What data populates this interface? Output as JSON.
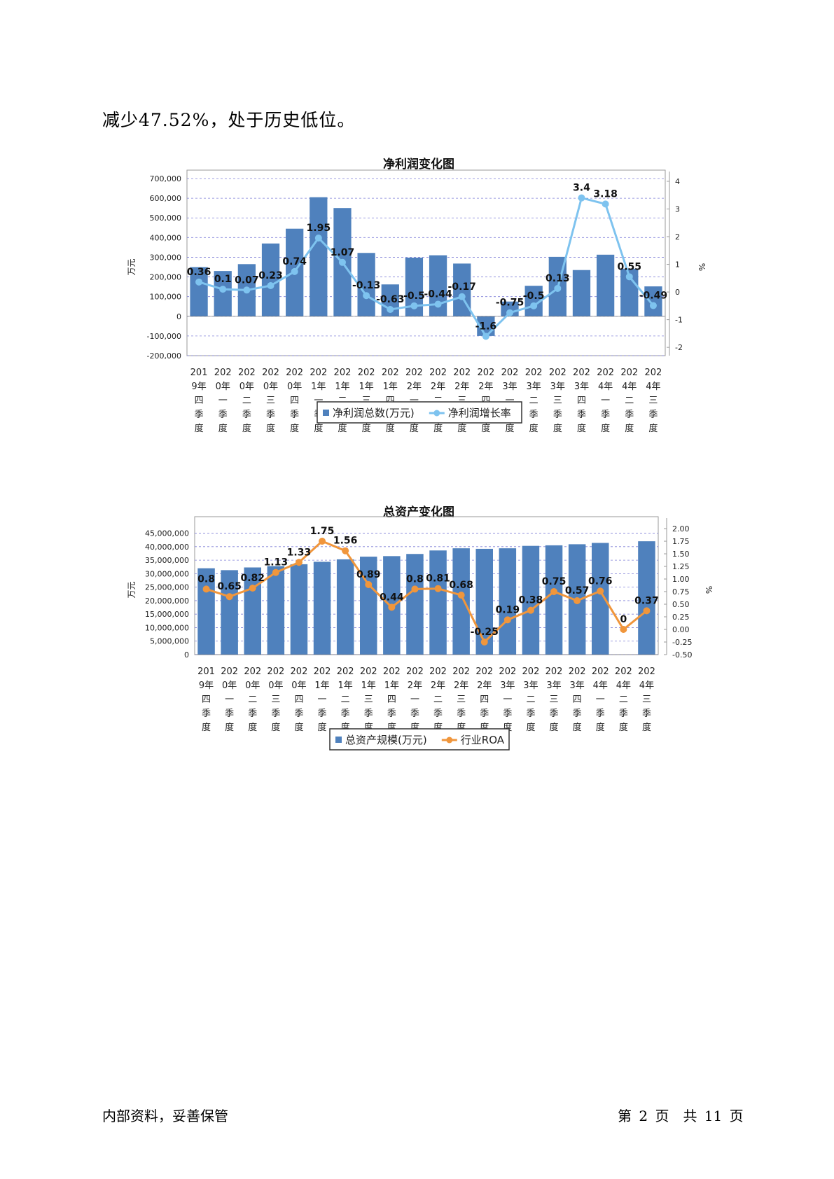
{
  "page": {
    "intro_text": "减少47.52%，处于历史低位。",
    "footer_left": "内部资料，妥善保管",
    "footer_right": "第 2 页　共 11 页"
  },
  "chart_data": [
    {
      "type": "bar",
      "title": "净利润变化图",
      "categories": [
        "2019年四季度",
        "2020年一季度",
        "2020年二季度",
        "2020年三季度",
        "2020年四季度",
        "2021年一季度",
        "2021年二季度",
        "2021年三季度",
        "2021年四季度",
        "2022年一季度",
        "2022年二季度",
        "2022年三季度",
        "2022年四季度",
        "2023年一季度",
        "2023年二季度",
        "2023年三季度",
        "2023年四季度",
        "2024年一季度",
        "2024年二季度",
        "2024年三季度"
      ],
      "ylabel": "万元",
      "y2label": "%",
      "ylim": [
        -200000,
        700000
      ],
      "y2lim": [
        -2.3,
        4.1
      ],
      "yticks": [
        "700,000",
        "600,000",
        "500,000",
        "400,000",
        "300,000",
        "200,000",
        "100,000",
        "0",
        "-100,000",
        "-200,000"
      ],
      "y2ticks": [
        "4",
        "3",
        "2",
        "1",
        "0",
        "-1",
        "-2"
      ],
      "legend": "bottom",
      "grid": true,
      "series": [
        {
          "name": "净利润总数(万元)",
          "kind": "bar",
          "axis": "left",
          "color": "#4f81bd",
          "values": [
            250000,
            230000,
            265000,
            370000,
            445000,
            605000,
            550000,
            322000,
            162000,
            298000,
            310000,
            268000,
            -100000,
            75000,
            155000,
            302000,
            235000,
            313000,
            242000,
            152000
          ]
        },
        {
          "name": "净利润增长率",
          "kind": "line",
          "axis": "right",
          "color": "#7ec3ef",
          "values": [
            0.36,
            0.1,
            0.07,
            0.23,
            0.74,
            1.95,
            1.07,
            -0.13,
            -0.63,
            -0.5,
            -0.44,
            -0.17,
            -1.6,
            -0.75,
            -0.5,
            0.13,
            3.4,
            3.18,
            0.55,
            -0.49
          ],
          "labels": [
            "0.36",
            "0.1",
            "0.07",
            "0.23",
            "0.74",
            "1.95",
            "1.07",
            "-0.13",
            "-0.63",
            "-0.5",
            "-0.44",
            "-0.17",
            "-1.6",
            "-0.75",
            "-0.5",
            "0.13",
            "3.4",
            "3.18",
            "0.55",
            "-0.49"
          ]
        }
      ]
    },
    {
      "type": "bar",
      "title": "总资产变化图",
      "categories": [
        "2019年四季度",
        "2020年一季度",
        "2020年二季度",
        "2020年三季度",
        "2020年四季度",
        "2021年一季度",
        "2021年二季度",
        "2021年三季度",
        "2021年四季度",
        "2022年一季度",
        "2022年二季度",
        "2022年三季度",
        "2022年四季度",
        "2023年一季度",
        "2023年二季度",
        "2023年三季度",
        "2023年四季度",
        "2024年一季度",
        "2024年二季度",
        "2024年三季度"
      ],
      "ylabel": "万元",
      "y2label": "%",
      "ylim": [
        0,
        48000000
      ],
      "y2lim": [
        -0.5,
        2.07
      ],
      "yticks": [
        "45,000,000",
        "40,000,000",
        "35,000,000",
        "30,000,000",
        "25,000,000",
        "20,000,000",
        "15,000,000",
        "10,000,000",
        "5,000,000",
        "0"
      ],
      "y2ticks": [
        "2.00",
        "1.75",
        "1.50",
        "1.25",
        "1.00",
        "0.75",
        "0.50",
        "0.25",
        "0.00",
        "-0.25",
        "-0.50"
      ],
      "legend": "bottom",
      "grid": true,
      "series": [
        {
          "name": "总资产规模(万元)",
          "kind": "bar",
          "axis": "left",
          "color": "#4f81bd",
          "values": [
            32000000,
            31300000,
            32300000,
            32800000,
            33500000,
            34400000,
            35300000,
            36300000,
            36500000,
            37300000,
            38600000,
            39400000,
            39200000,
            39400000,
            40300000,
            40500000,
            40900000,
            41400000,
            null,
            42000000
          ]
        },
        {
          "name": "行业ROA",
          "kind": "line",
          "axis": "right",
          "color": "#f0963c",
          "values": [
            0.8,
            0.65,
            0.82,
            1.13,
            1.33,
            1.75,
            1.56,
            0.89,
            0.44,
            0.8,
            0.81,
            0.68,
            -0.25,
            0.19,
            0.38,
            0.75,
            0.57,
            0.76,
            0,
            0.37
          ],
          "labels": [
            "0.8",
            "0.65",
            "0.82",
            "1.13",
            "1.33",
            "1.75",
            "1.56",
            "0.89",
            "0.44",
            "0.8",
            "0.81",
            "0.68",
            "-0.25",
            "0.19",
            "0.38",
            "0.75",
            "0.57",
            "0.76",
            "0",
            "0.37"
          ]
        }
      ]
    }
  ]
}
